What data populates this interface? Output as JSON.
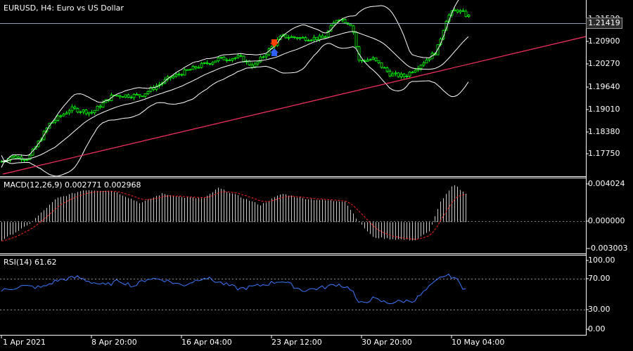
{
  "header": {
    "symbol_title": "EURUSD, H4:  Euro vs US Dollar"
  },
  "price_panel": {
    "current_price": "1.21419",
    "yticks": [
      "1.21520",
      "1.20900",
      "1.20270",
      "1.19640",
      "1.19010",
      "1.18380",
      "1.17750"
    ]
  },
  "macd_panel": {
    "title": "MACD(12,26,9) 0.002771 0.002968",
    "yticks": [
      "0.004024",
      "0.000000",
      "-0.003003"
    ]
  },
  "rsi_panel": {
    "title": "RSI(14) 61.62",
    "yticks": [
      "100.00",
      "70.00",
      "30.00",
      "0.00"
    ]
  },
  "time_axis": {
    "labels": [
      "1 Apr 2021",
      "8 Apr 20:00",
      "16 Apr 04:00",
      "23 Apr 12:00",
      "30 Apr 20:00",
      "10 May 04:00"
    ]
  },
  "colors": {
    "background": "#000000",
    "bull_candle": "#00ff00",
    "trendline": "#ff3060",
    "bollinger": "#ffffff",
    "macd_signal": "#ff2020",
    "rsi_line": "#3a78ff",
    "grid_dash": "#808080"
  },
  "chart_data": [
    {
      "type": "candlestick",
      "title": "EURUSD, H4:  Euro vs US Dollar",
      "indicator": "Bollinger Bands",
      "ylim": [
        1.1725,
        1.2185
      ],
      "anchors": [
        [
          0,
          1.176
        ],
        [
          15,
          1.1775
        ],
        [
          40,
          1.177
        ],
        [
          70,
          1.186
        ],
        [
          100,
          1.19
        ],
        [
          130,
          1.189
        ],
        [
          160,
          1.1935
        ],
        [
          200,
          1.1935
        ],
        [
          240,
          1.198
        ],
        [
          280,
          1.201
        ],
        [
          310,
          1.203
        ],
        [
          340,
          1.2035
        ],
        [
          360,
          1.201
        ],
        [
          380,
          1.205
        ],
        [
          400,
          1.209
        ],
        [
          430,
          1.2085
        ],
        [
          460,
          1.2085
        ],
        [
          480,
          1.214
        ],
        [
          500,
          1.212
        ],
        [
          510,
          1.2025
        ],
        [
          530,
          1.203
        ],
        [
          555,
          1.199
        ],
        [
          575,
          1.1985
        ],
        [
          600,
          1.202
        ],
        [
          620,
          1.205
        ],
        [
          635,
          1.214
        ],
        [
          648,
          1.216
        ],
        [
          658,
          1.215
        ],
        [
          665,
          1.2142
        ]
      ]
    },
    {
      "type": "bar",
      "title": "MACD(12,26,9) 0.002771 0.002968",
      "ylim": [
        -0.003003,
        0.004024
      ],
      "anchors": [
        [
          0,
          -0.002
        ],
        [
          40,
          -0.0003
        ],
        [
          80,
          0.0025
        ],
        [
          120,
          0.0034
        ],
        [
          160,
          0.0033
        ],
        [
          200,
          0.002
        ],
        [
          230,
          0.003
        ],
        [
          260,
          0.0026
        ],
        [
          290,
          0.0025
        ],
        [
          310,
          0.0036
        ],
        [
          340,
          0.0027
        ],
        [
          370,
          0.0018
        ],
        [
          400,
          0.003
        ],
        [
          430,
          0.0025
        ],
        [
          460,
          0.0023
        ],
        [
          490,
          0.0022
        ],
        [
          510,
          0.0
        ],
        [
          530,
          -0.0016
        ],
        [
          560,
          -0.0018
        ],
        [
          590,
          -0.0019
        ],
        [
          610,
          -0.001
        ],
        [
          625,
          0.002
        ],
        [
          645,
          0.004
        ],
        [
          665,
          0.0028
        ]
      ]
    },
    {
      "type": "line",
      "title": "RSI(14) 61.62",
      "ylim": [
        0,
        100
      ],
      "levels": [
        70,
        30
      ],
      "anchors": [
        [
          0,
          55
        ],
        [
          30,
          62
        ],
        [
          60,
          60
        ],
        [
          80,
          70
        ],
        [
          110,
          75
        ],
        [
          130,
          68
        ],
        [
          150,
          63
        ],
        [
          170,
          70
        ],
        [
          190,
          62
        ],
        [
          210,
          73
        ],
        [
          230,
          72
        ],
        [
          260,
          63
        ],
        [
          290,
          75
        ],
        [
          310,
          68
        ],
        [
          340,
          58
        ],
        [
          370,
          63
        ],
        [
          400,
          70
        ],
        [
          430,
          56
        ],
        [
          460,
          60
        ],
        [
          480,
          65
        ],
        [
          500,
          58
        ],
        [
          510,
          36
        ],
        [
          530,
          44
        ],
        [
          550,
          38
        ],
        [
          570,
          40
        ],
        [
          590,
          42
        ],
        [
          610,
          60
        ],
        [
          630,
          77
        ],
        [
          645,
          76
        ],
        [
          658,
          60
        ],
        [
          665,
          62
        ]
      ]
    }
  ]
}
